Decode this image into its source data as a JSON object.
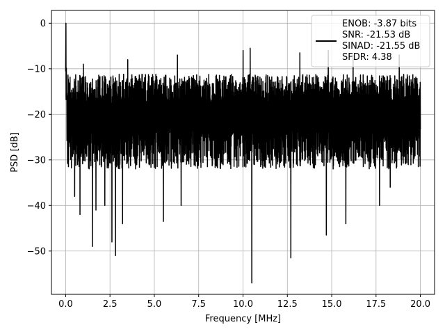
{
  "chart_data": {
    "type": "line",
    "title": "",
    "xlabel": "Frequency [MHz]",
    "ylabel": "PSD [dB]",
    "xlim": [
      -0.8,
      20.8
    ],
    "ylim": [
      -59.5,
      2.8
    ],
    "xticks": [
      0.0,
      2.5,
      5.0,
      7.5,
      10.0,
      12.5,
      15.0,
      17.5,
      20.0
    ],
    "xtick_labels": [
      "0.0",
      "2.5",
      "5.0",
      "7.5",
      "10.0",
      "12.5",
      "15.0",
      "17.5",
      "20.0"
    ],
    "yticks": [
      0,
      -10,
      -20,
      -30,
      -40,
      -50
    ],
    "ytick_labels": [
      "0",
      "−10",
      "−20",
      "−30",
      "−40",
      "−50"
    ],
    "grid": true,
    "legend_position": "upper-right",
    "legend_lines": [
      "ENOB: -3.87 bits",
      "SNR: -21.53 dB",
      "SINAD: -21.55 dB",
      "SFDR: 4.38"
    ],
    "series": [
      {
        "color": "#000000",
        "x_start": 0.0,
        "x_end": 20.0,
        "peak": {
          "x": 0.02,
          "y": 0.0
        },
        "noise_floor_median": -20,
        "noise_upper_typical": -12,
        "noise_lower_typical": -30,
        "deep_nulls": [
          {
            "x": 0.5,
            "y": -38
          },
          {
            "x": 0.8,
            "y": -42
          },
          {
            "x": 1.5,
            "y": -49
          },
          {
            "x": 1.7,
            "y": -41
          },
          {
            "x": 2.2,
            "y": -40
          },
          {
            "x": 2.6,
            "y": -48
          },
          {
            "x": 2.8,
            "y": -51
          },
          {
            "x": 3.2,
            "y": -44
          },
          {
            "x": 5.5,
            "y": -43.5
          },
          {
            "x": 6.5,
            "y": -40
          },
          {
            "x": 10.5,
            "y": -57
          },
          {
            "x": 12.7,
            "y": -51.5
          },
          {
            "x": 14.7,
            "y": -46.5
          },
          {
            "x": 15.8,
            "y": -44
          },
          {
            "x": 17.7,
            "y": -40
          },
          {
            "x": 18.3,
            "y": -36
          }
        ],
        "high_peaks": [
          {
            "x": 1.0,
            "y": -9
          },
          {
            "x": 3.5,
            "y": -8
          },
          {
            "x": 6.3,
            "y": -7
          },
          {
            "x": 10.0,
            "y": -6
          },
          {
            "x": 10.4,
            "y": -5.5
          },
          {
            "x": 13.2,
            "y": -6.5
          },
          {
            "x": 14.8,
            "y": -6
          },
          {
            "x": 16.2,
            "y": -7
          },
          {
            "x": 18.8,
            "y": -7
          }
        ]
      }
    ]
  }
}
